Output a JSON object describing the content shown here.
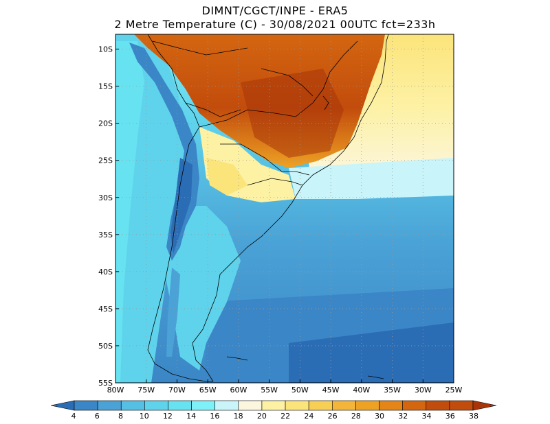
{
  "title": {
    "line1": "DIMNT/CGCT/INPE -  ERA5",
    "line2": "2 Metre Temperature (C) -  30/08/2021 00UTC fct=233h"
  },
  "map": {
    "lon_range": [
      -80,
      -25
    ],
    "lat_range": [
      -55,
      -8
    ],
    "lon_ticks": [
      "80W",
      "75W",
      "70W",
      "65W",
      "60W",
      "55W",
      "50W",
      "45W",
      "40W",
      "35W",
      "30W",
      "25W"
    ],
    "lat_ticks": [
      "10S",
      "15S",
      "20S",
      "25S",
      "30S",
      "35S",
      "40S",
      "45S",
      "50S",
      "55S"
    ],
    "grid": "dotted"
  },
  "colorbar": {
    "labels": [
      "4",
      "6",
      "8",
      "10",
      "12",
      "14",
      "16",
      "18",
      "20",
      "22",
      "24",
      "26",
      "28",
      "30",
      "32",
      "34",
      "36",
      "38"
    ],
    "colors": [
      "#2b6db5",
      "#3b86c6",
      "#4aa2d6",
      "#55bfe4",
      "#5fd3ec",
      "#66e2f1",
      "#7ef0f7",
      "#c8f4fa",
      "#fbf6de",
      "#fdf1a4",
      "#fbe47a",
      "#f8cf55",
      "#f4b63a",
      "#eea224",
      "#e48518",
      "#d46610",
      "#c24c0c",
      "#a8340a"
    ]
  }
}
